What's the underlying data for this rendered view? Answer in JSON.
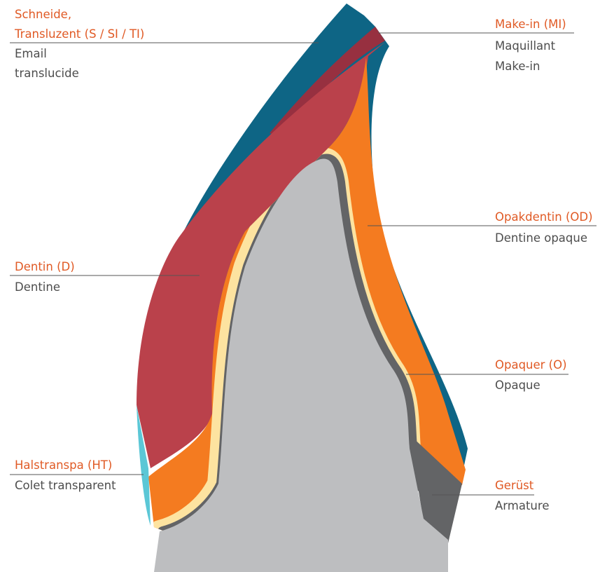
{
  "labels": [
    {
      "title": [
        "Schneide,",
        "Transluzent (S / SI / TI)"
      ],
      "subtitle": [
        "Email",
        "translucide"
      ]
    },
    {
      "title": [
        "Make-in (MI)"
      ],
      "subtitle": [
        "Maquillant",
        "Make-in"
      ]
    },
    {
      "title": [
        "Opakdentin (OD)"
      ],
      "subtitle": [
        "Dentine opaque"
      ]
    },
    {
      "title": [
        "Dentin (D)"
      ],
      "subtitle": [
        "Dentine"
      ]
    },
    {
      "title": [
        "Opaquer (O)"
      ],
      "subtitle": [
        "Opaque"
      ]
    },
    {
      "title": [
        "Halstranspa (HT)"
      ],
      "subtitle": [
        "Colet transparent"
      ]
    },
    {
      "title": [
        "Gerüst"
      ],
      "subtitle": [
        "Armature"
      ]
    }
  ]
}
